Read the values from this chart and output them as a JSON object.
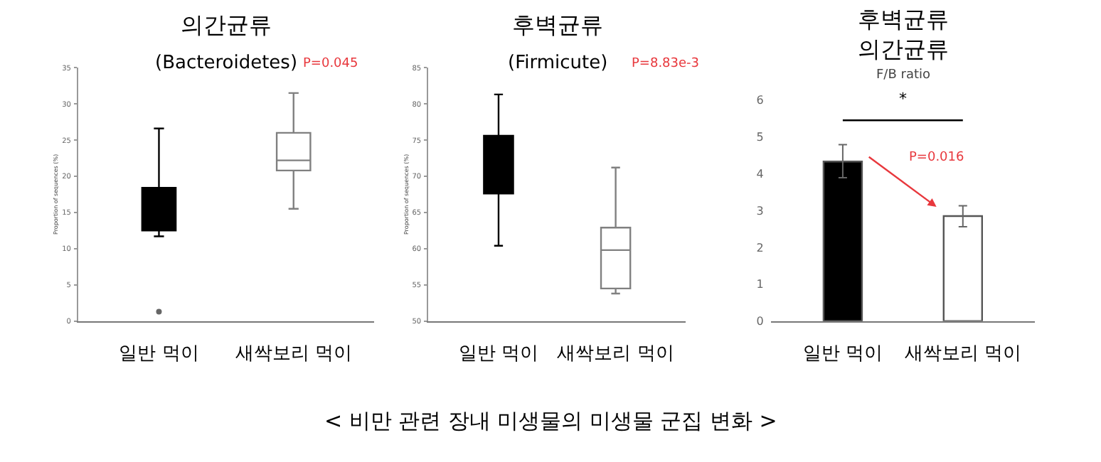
{
  "chart_data": [
    {
      "type": "box",
      "title": "의간균류",
      "subtitle": "(Bacteroidetes)",
      "ylabel": "Proportion of sequences (%)",
      "categories": [
        "일반 먹이",
        "새싹보리 먹이"
      ],
      "boxes": [
        {
          "low": 11.7,
          "q1": 12.5,
          "median": 13,
          "q3": 18.4,
          "high": 26.6,
          "outliers": [
            1.3
          ]
        },
        {
          "low": 15.5,
          "q1": 20.8,
          "median": 22.2,
          "q3": 26.0,
          "high": 31.5
        }
      ],
      "colors": [
        "#000000",
        "#ffffff"
      ],
      "ylim": [
        0,
        35
      ],
      "yticks": [
        0,
        5,
        10,
        15,
        20,
        25,
        30,
        35
      ],
      "annotations": [
        "P=0.045",
        "< 비만 관련 장내 미생물의 미생물 군집 변화 >"
      ]
    },
    {
      "type": "box",
      "title": "후벽균류",
      "subtitle": "(Firmicute)",
      "ylabel": "Proportion of sequences (%)",
      "categories": [
        "일반 먹이",
        "새싹보리 먹이"
      ],
      "boxes": [
        {
          "low": 60.4,
          "q1": 67.6,
          "median": 70,
          "q3": 75.6,
          "high": 81.3
        },
        {
          "low": 53.8,
          "q1": 54.5,
          "median": 59.8,
          "q3": 62.9,
          "high": 71.2
        }
      ],
      "colors": [
        "#000000",
        "#ffffff"
      ],
      "ylim": [
        50,
        85
      ],
      "yticks": [
        50,
        55,
        60,
        65,
        70,
        75,
        80,
        85
      ],
      "annotations": [
        "P=8.83e-3"
      ]
    },
    {
      "type": "bar",
      "title": "후벽균류\n의간균류",
      "subtitle": "F/B ratio",
      "categories": [
        "일반 먹이",
        "새싹보리 먹이"
      ],
      "values": [
        4.33,
        2.85
      ],
      "colors": [
        "#000000",
        "#ffffff"
      ],
      "errors": [
        [
          3.89,
          4.79
        ],
        [
          2.56,
          3.13
        ]
      ],
      "ylim": [
        0,
        6
      ],
      "yticks": [
        0,
        1,
        2,
        3,
        4,
        5,
        6
      ],
      "annotations": [
        "*",
        "P=0.016"
      ]
    }
  ]
}
